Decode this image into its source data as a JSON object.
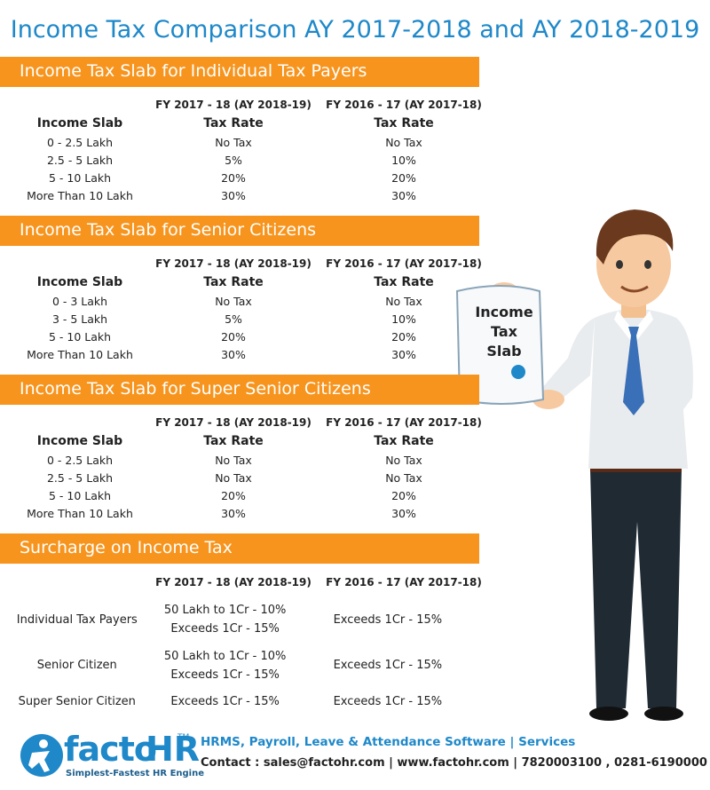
{
  "title": "Income Tax Comparison AY 2017-2018 and AY 2018-2019",
  "sections": [
    {
      "heading": "Income Tax Slab for Individual Tax Payers",
      "columns": [
        "FY 2017 - 18 (AY 2018-19)",
        "FY 2016 - 17 (AY 2017-18)"
      ],
      "subheaders": [
        "Income Slab",
        "Tax Rate",
        "Tax Rate"
      ],
      "rows": [
        [
          "0 - 2.5 Lakh",
          "No Tax",
          "No Tax"
        ],
        [
          "2.5 - 5 Lakh",
          "5%",
          "10%"
        ],
        [
          "5 - 10 Lakh",
          "20%",
          "20%"
        ],
        [
          "More Than 10 Lakh",
          "30%",
          "30%"
        ]
      ]
    },
    {
      "heading": "Income Tax Slab for Senior Citizens",
      "columns": [
        "FY 2017 - 18 (AY 2018-19)",
        "FY 2016 - 17 (AY 2017-18)"
      ],
      "subheaders": [
        "Income Slab",
        "Tax Rate",
        "Tax Rate"
      ],
      "rows": [
        [
          "0 - 3 Lakh",
          "No Tax",
          "No Tax"
        ],
        [
          "3 - 5 Lakh",
          "5%",
          "10%"
        ],
        [
          "5 - 10 Lakh",
          "20%",
          "20%"
        ],
        [
          "More Than 10 Lakh",
          "30%",
          "30%"
        ]
      ]
    },
    {
      "heading": "Income Tax Slab for Super Senior Citizens",
      "columns": [
        "FY 2017 - 18 (AY 2018-19)",
        "FY 2016 - 17 (AY 2017-18)"
      ],
      "subheaders": [
        "Income Slab",
        "Tax Rate",
        "Tax Rate"
      ],
      "rows": [
        [
          "0 - 2.5 Lakh",
          "No Tax",
          "No Tax"
        ],
        [
          "2.5 - 5 Lakh",
          "No Tax",
          "No Tax"
        ],
        [
          "5 - 10 Lakh",
          "20%",
          "20%"
        ],
        [
          "More Than 10 Lakh",
          "30%",
          "30%"
        ]
      ]
    }
  ],
  "surcharge": {
    "heading": "Surcharge on Income Tax",
    "columns": [
      "FY 2017 - 18 (AY 2018-19)",
      "FY 2016 - 17 (AY 2017-18)"
    ],
    "rows": [
      {
        "label": "Individual Tax Payers",
        "current": [
          "50 Lakh to 1Cr - 10%",
          "Exceeds 1Cr - 15%"
        ],
        "previous": [
          "Exceeds 1Cr - 15%"
        ]
      },
      {
        "label": "Senior Citizen",
        "current": [
          "50 Lakh to 1Cr - 10%",
          "Exceeds 1Cr - 15%"
        ],
        "previous": [
          "Exceeds 1Cr - 15%"
        ]
      },
      {
        "label": "Super Senior Citizen",
        "current": [
          "Exceeds 1Cr - 15%"
        ],
        "previous": [
          "Exceeds 1Cr - 15%"
        ]
      }
    ]
  },
  "sign": [
    "Income",
    "Tax",
    "Slab"
  ],
  "footer": {
    "logo_main": "facto",
    "logo_hr": "HR",
    "trademark": "TM",
    "tagline": "Simplest-Fastest HR Engine",
    "services": "HRMS, Payroll, Leave & Attendance Software | Services",
    "contact": "Contact : sales@factohr.com | www.factohr.com | 7820003100 , 0281-6190000"
  }
}
